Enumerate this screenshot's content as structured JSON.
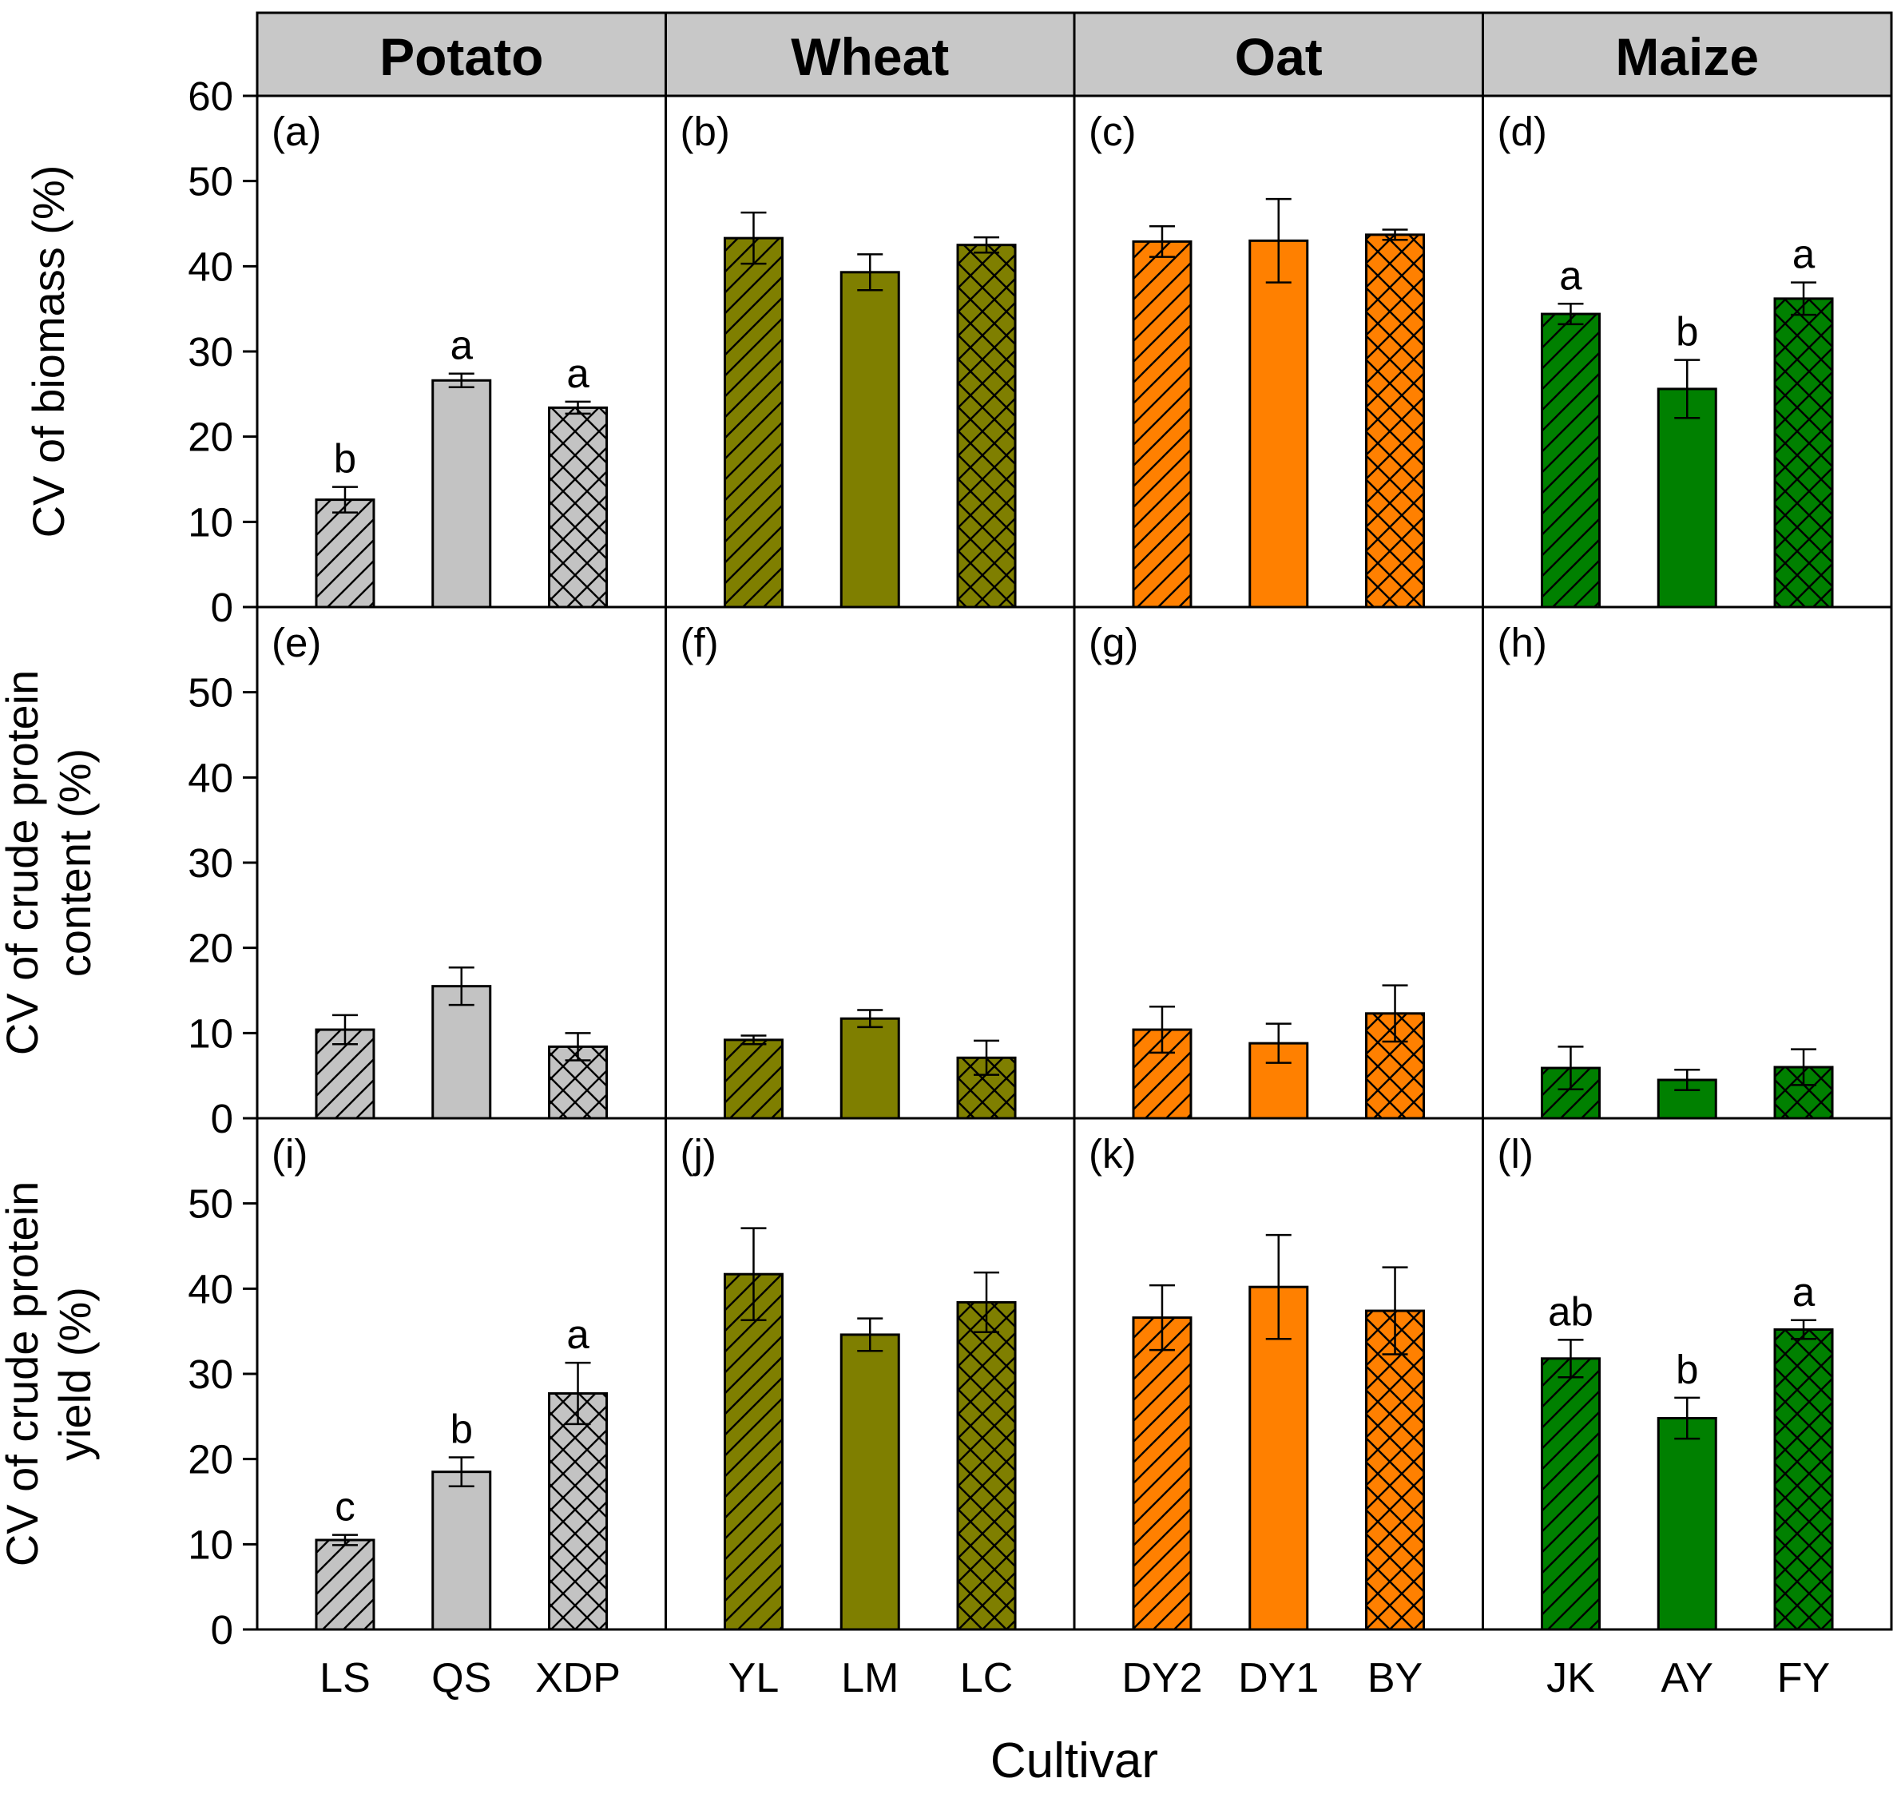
{
  "chart_data": {
    "type": "bar",
    "xlabel": "Cultivar",
    "crops": [
      {
        "name": "Potato",
        "color": "#c3c3c3",
        "cultivars": [
          "LS",
          "QS",
          "XDP"
        ]
      },
      {
        "name": "Wheat",
        "color": "#7f7f00",
        "cultivars": [
          "YL",
          "LM",
          "LC"
        ]
      },
      {
        "name": "Oat",
        "color": "#ff8000",
        "cultivars": [
          "DY2",
          "DY1",
          "BY"
        ]
      },
      {
        "name": "Maize",
        "color": "#008000",
        "cultivars": [
          "JK",
          "AY",
          "FY"
        ]
      }
    ],
    "patterns": [
      "diagonal-hatch",
      "solid",
      "cross-hatch"
    ],
    "rows": [
      {
        "ylabel_lines": [
          "CV of biomass (%)"
        ],
        "ylim": [
          0,
          60
        ],
        "yticks": [
          "0",
          "10",
          "20",
          "30",
          "40",
          "50",
          "60"
        ],
        "panels": [
          "(a)",
          "(b)",
          "(c)",
          "(d)"
        ],
        "values": [
          [
            12.6,
            26.6,
            23.4
          ],
          [
            43.3,
            39.3,
            42.5
          ],
          [
            42.9,
            43.0,
            43.7
          ],
          [
            34.4,
            25.6,
            36.2
          ]
        ],
        "errors": [
          [
            1.5,
            0.8,
            0.7
          ],
          [
            3.0,
            2.1,
            0.9
          ],
          [
            1.8,
            4.9,
            0.6
          ],
          [
            1.2,
            3.4,
            1.9
          ]
        ],
        "sig": [
          [
            "b",
            "a",
            "a"
          ],
          [
            "",
            "",
            ""
          ],
          [
            "",
            "",
            ""
          ],
          [
            "a",
            "b",
            "a"
          ]
        ]
      },
      {
        "ylabel_lines": [
          "CV of crude protein",
          "content (%)"
        ],
        "ylim": [
          0,
          60
        ],
        "yticks": [
          "0",
          "10",
          "20",
          "30",
          "40",
          "50"
        ],
        "panels": [
          "(e)",
          "(f)",
          "(g)",
          "(h)"
        ],
        "values": [
          [
            10.4,
            15.5,
            8.4
          ],
          [
            9.2,
            11.7,
            7.1
          ],
          [
            10.4,
            8.8,
            12.3
          ],
          [
            5.9,
            4.5,
            6.0
          ]
        ],
        "errors": [
          [
            1.7,
            2.2,
            1.6
          ],
          [
            0.5,
            1.0,
            2.0
          ],
          [
            2.7,
            2.3,
            3.3
          ],
          [
            2.5,
            1.2,
            2.1
          ]
        ],
        "sig": [
          [
            "",
            "",
            ""
          ],
          [
            "",
            "",
            ""
          ],
          [
            "",
            "",
            ""
          ],
          [
            "",
            "",
            ""
          ]
        ]
      },
      {
        "ylabel_lines": [
          "CV of crude protein",
          "yield (%)"
        ],
        "ylim": [
          0,
          60
        ],
        "yticks": [
          "0",
          "10",
          "20",
          "30",
          "40",
          "50"
        ],
        "panels": [
          "(i)",
          "(j)",
          "(k)",
          "(l)"
        ],
        "values": [
          [
            10.5,
            18.5,
            27.7
          ],
          [
            41.7,
            34.6,
            38.4
          ],
          [
            36.6,
            40.2,
            37.4
          ],
          [
            31.8,
            24.8,
            35.2
          ]
        ],
        "errors": [
          [
            0.6,
            1.7,
            3.6
          ],
          [
            5.4,
            1.9,
            3.5
          ],
          [
            3.8,
            6.1,
            5.1
          ],
          [
            2.2,
            2.4,
            1.1
          ]
        ],
        "sig": [
          [
            "c",
            "b",
            "a"
          ],
          [
            "",
            "",
            ""
          ],
          [
            "",
            "",
            ""
          ],
          [
            "ab",
            "b",
            "a"
          ]
        ]
      }
    ]
  }
}
